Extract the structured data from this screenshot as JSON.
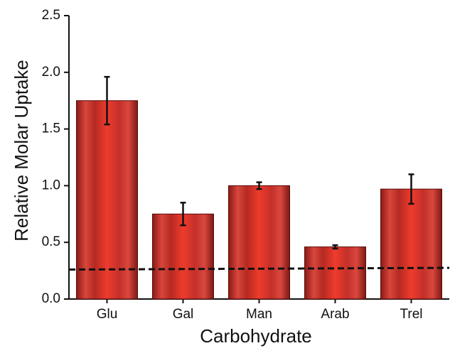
{
  "chart_data": {
    "type": "bar",
    "xlabel": "Carbohydrate",
    "ylabel": "Relative Molar Uptake",
    "categories": [
      "Glu",
      "Gal",
      "Man",
      "Arab",
      "Trel"
    ],
    "values": [
      1.75,
      0.75,
      1.0,
      0.46,
      0.97
    ],
    "errors": [
      0.21,
      0.1,
      0.03,
      0.015,
      0.13
    ],
    "color": "#e8392a",
    "reference_line": [
      0.26,
      0.275
    ],
    "ylim": [
      0,
      2.5
    ],
    "yticks": [
      {
        "value": 0,
        "label": "0.0"
      },
      {
        "value": 0.5,
        "label": "0.5"
      },
      {
        "value": 1,
        "label": "1.0"
      },
      {
        "value": 1.5,
        "label": "1.5"
      },
      {
        "value": 2,
        "label": "2.0"
      },
      {
        "value": 2.5,
        "label": "2.5"
      }
    ]
  }
}
